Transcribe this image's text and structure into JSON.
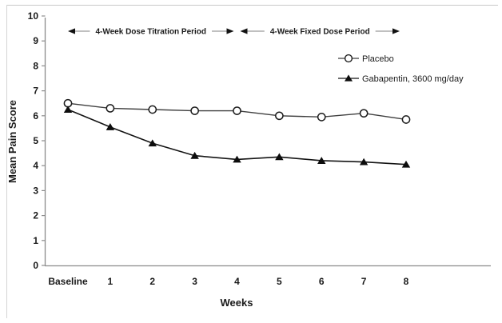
{
  "chart_data": {
    "type": "line",
    "title": "",
    "xlabel": "Weeks",
    "ylabel": "Mean Pain Score",
    "categories": [
      "Baseline",
      "1",
      "2",
      "3",
      "4",
      "5",
      "6",
      "7",
      "8"
    ],
    "ylim": [
      0,
      10
    ],
    "ytick_step": 1,
    "grid": false,
    "legend_position": "upper-right-inside",
    "series": [
      {
        "name": "Placebo",
        "marker": "open-circle",
        "color": "#3f3f3f",
        "values": [
          6.5,
          6.3,
          6.25,
          6.2,
          6.2,
          6.0,
          5.95,
          6.1,
          5.85
        ]
      },
      {
        "name": "Gabapentin, 3600 mg/day",
        "marker": "filled-triangle",
        "color": "#141414",
        "values": [
          6.25,
          5.55,
          4.9,
          4.4,
          4.25,
          4.35,
          4.2,
          4.15,
          4.05
        ]
      }
    ],
    "annotations": [
      {
        "label": "4-Week Dose Titration Period",
        "from_category": "Baseline",
        "to_category": "4",
        "arrows": "both"
      },
      {
        "label": "4-Week Fixed Dose Period",
        "from_category": "4",
        "to_category": "8",
        "arrows": "both"
      }
    ]
  },
  "colors": {
    "axis": "#8c8c8c",
    "text": "#1a1a1a",
    "arrow_line": "#9b9b9b",
    "arrow_head": "#111111",
    "frame": "#c9c9c9",
    "marker_fill_open": "#ffffff"
  }
}
